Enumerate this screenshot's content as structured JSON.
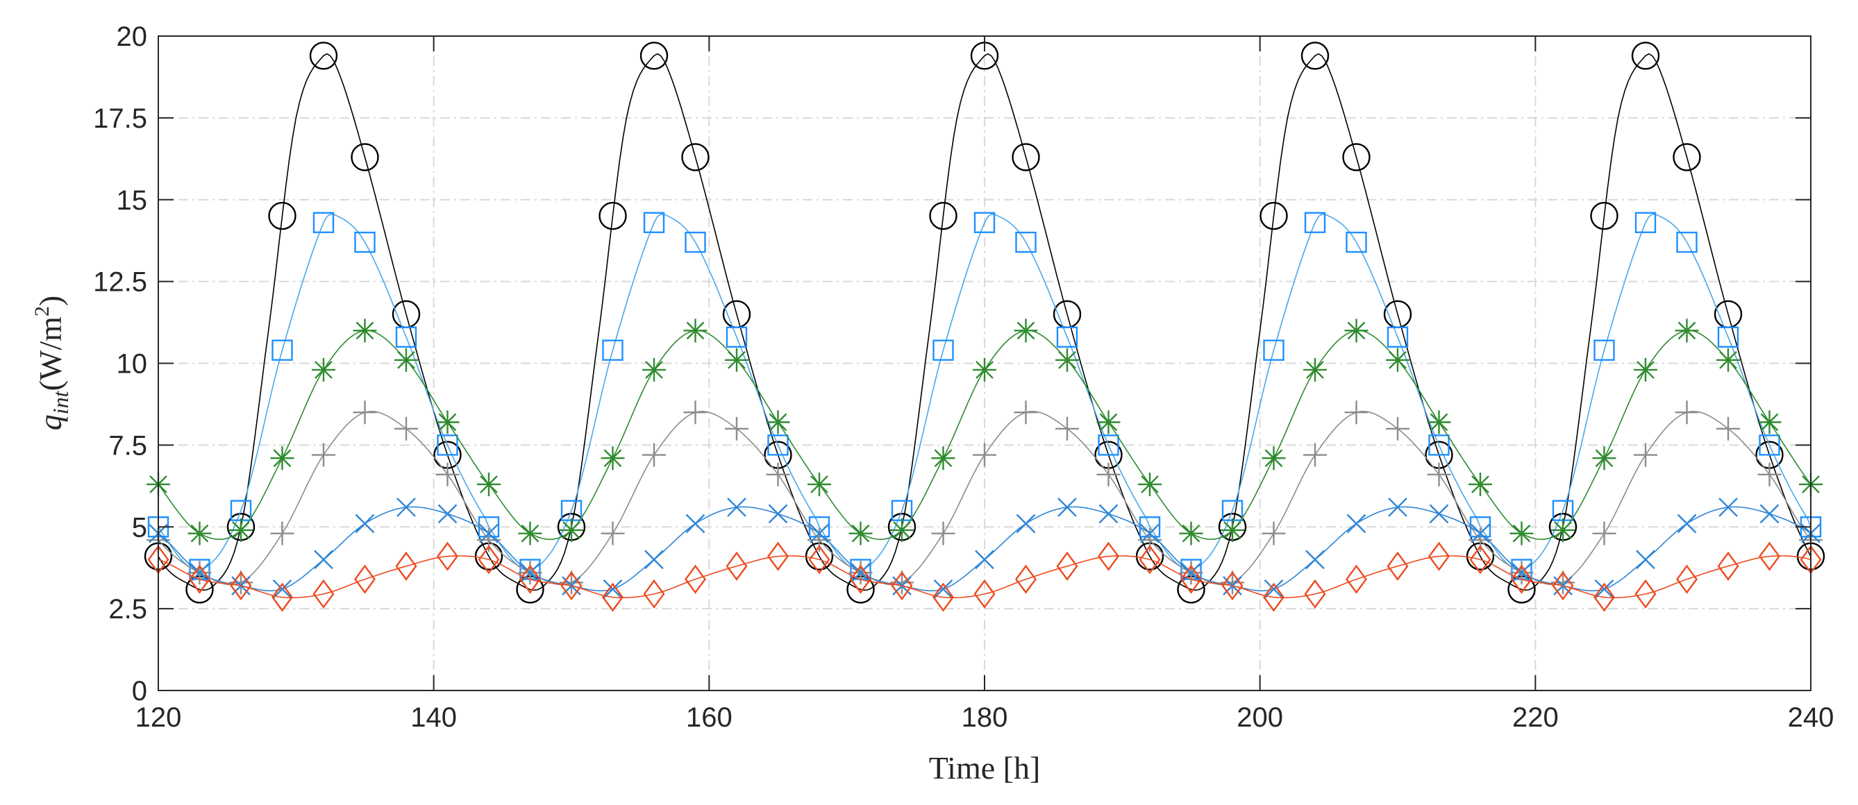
{
  "chart_data": {
    "type": "line",
    "title": "",
    "xlabel": "Time [h]",
    "ylabel_main": "q",
    "ylabel_sub": "int",
    "ylabel_unit_open": "(W/m",
    "ylabel_unit_sup": "2",
    "ylabel_unit_close": ")",
    "xlim": [
      120,
      240
    ],
    "ylim": [
      0,
      20
    ],
    "xticks": [
      120,
      140,
      160,
      180,
      200,
      220,
      240
    ],
    "yticks": [
      0,
      2.5,
      5,
      7.5,
      10,
      12.5,
      15,
      17.5,
      20
    ],
    "xtick_labels": [
      "120",
      "140",
      "160",
      "180",
      "200",
      "220",
      "240"
    ],
    "ytick_labels": [
      "0",
      "2.5",
      "5",
      "7.5",
      "10",
      "12.5",
      "15",
      "17.5",
      "20"
    ],
    "grid": true,
    "period": 24,
    "marker_x_offsets": [
      0,
      3,
      6,
      9,
      12,
      15,
      18,
      21
    ],
    "series": [
      {
        "name": "circle series",
        "marker": "circle",
        "color": "#000000",
        "profile_x": [
          0,
          2,
          4,
          6,
          8,
          10,
          12,
          13,
          15,
          18,
          21,
          24
        ],
        "profile_y": [
          4.1,
          3.3,
          3.2,
          5.0,
          11.0,
          17.5,
          19.4,
          19.0,
          16.3,
          11.5,
          7.2,
          4.1
        ]
      },
      {
        "name": "square series",
        "marker": "square",
        "color": "#1e90ff",
        "profile_x": [
          0,
          3,
          6,
          9,
          12,
          13,
          15,
          18,
          21,
          24
        ],
        "profile_y": [
          5.0,
          3.7,
          5.5,
          10.4,
          14.3,
          14.5,
          13.7,
          10.8,
          7.5,
          5.1
        ],
        "line_color": "#4aa8e8"
      },
      {
        "name": "asterisk series",
        "marker": "asterisk",
        "color": "#2e8b2e",
        "profile_x": [
          0,
          3,
          6,
          9,
          12,
          15,
          18,
          21,
          24
        ],
        "profile_y": [
          6.3,
          4.8,
          4.9,
          7.1,
          9.8,
          11.0,
          10.1,
          8.2,
          6.3
        ]
      },
      {
        "name": "plus series",
        "marker": "plus",
        "color": "#8c8c8c",
        "profile_x": [
          0,
          3,
          6,
          9,
          12,
          15,
          18,
          21,
          24
        ],
        "profile_y": [
          4.6,
          3.6,
          3.3,
          4.8,
          7.2,
          8.5,
          8.0,
          6.6,
          4.6
        ]
      },
      {
        "name": "x series",
        "marker": "x",
        "color": "#2e86d6",
        "profile_x": [
          0,
          3,
          6,
          9,
          12,
          15,
          18,
          21,
          24
        ],
        "profile_y": [
          4.8,
          3.6,
          3.2,
          3.1,
          4.0,
          5.1,
          5.6,
          5.4,
          4.8
        ]
      },
      {
        "name": "diamond series",
        "marker": "diamond",
        "color": "#ee4a1e",
        "profile_x": [
          0,
          3,
          6,
          9,
          12,
          15,
          18,
          21,
          24
        ],
        "profile_y": [
          4.0,
          3.4,
          3.2,
          2.85,
          2.95,
          3.4,
          3.8,
          4.1,
          4.0
        ]
      }
    ]
  }
}
